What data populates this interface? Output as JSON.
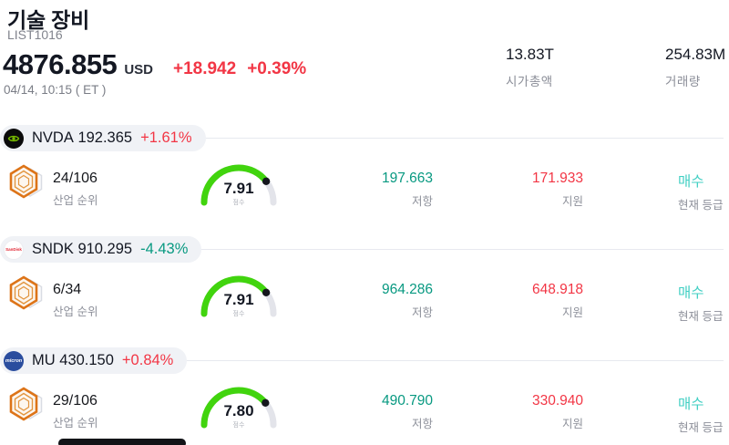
{
  "header": {
    "title": "기술 장비",
    "subtitle": "LIST1016",
    "price": "4876.855",
    "currency": "USD",
    "change": "+18.942",
    "change_percent": "+0.39%",
    "datetime": "04/14, 10:15 ( ET )",
    "stats": [
      {
        "value": "13.83T",
        "label": "시가총액"
      },
      {
        "value": "254.83M",
        "label": "거래량"
      }
    ]
  },
  "colors": {
    "up": "#f23645",
    "down": "#089981",
    "resistance": "#089981",
    "support": "#f23645",
    "rating": "#40cfc3",
    "gauge_fill": "#41d40e",
    "gauge_track": "#e3e4ea",
    "pill_bg": "#f0f2f6"
  },
  "rows": [
    {
      "ticker": "NVDA",
      "price": "192.365",
      "change": "+1.61%",
      "change_dir": "up",
      "logo": "nvidia-logo",
      "rank": "24/106",
      "rank_label": "산업 순위",
      "score": 7.91,
      "score_display": "7.91",
      "score_label": "점수",
      "resistance": "197.663",
      "resistance_label": "저항",
      "support": "171.933",
      "support_label": "지원",
      "rating": "매수",
      "rating_label": "현재 등급"
    },
    {
      "ticker": "SNDK",
      "price": "910.295",
      "change": "-4.43%",
      "change_dir": "down",
      "logo": "sandisk-logo",
      "rank": "6/34",
      "rank_label": "산업 순위",
      "score": 7.91,
      "score_display": "7.91",
      "score_label": "점수",
      "resistance": "964.286",
      "resistance_label": "저항",
      "support": "648.918",
      "support_label": "지원",
      "rating": "매수",
      "rating_label": "현재 등급"
    },
    {
      "ticker": "MU",
      "price": "430.150",
      "change": "+0.84%",
      "change_dir": "up",
      "logo": "micron-logo",
      "rank": "29/106",
      "rank_label": "산업 순위",
      "score": 7.8,
      "score_display": "7.80",
      "score_label": "점수",
      "resistance": "490.790",
      "resistance_label": "저항",
      "support": "330.940",
      "support_label": "지원",
      "rating": "매수",
      "rating_label": "현재 등급"
    }
  ],
  "logo_text": {
    "sandisk": "SanDisk",
    "micron": "micron"
  }
}
